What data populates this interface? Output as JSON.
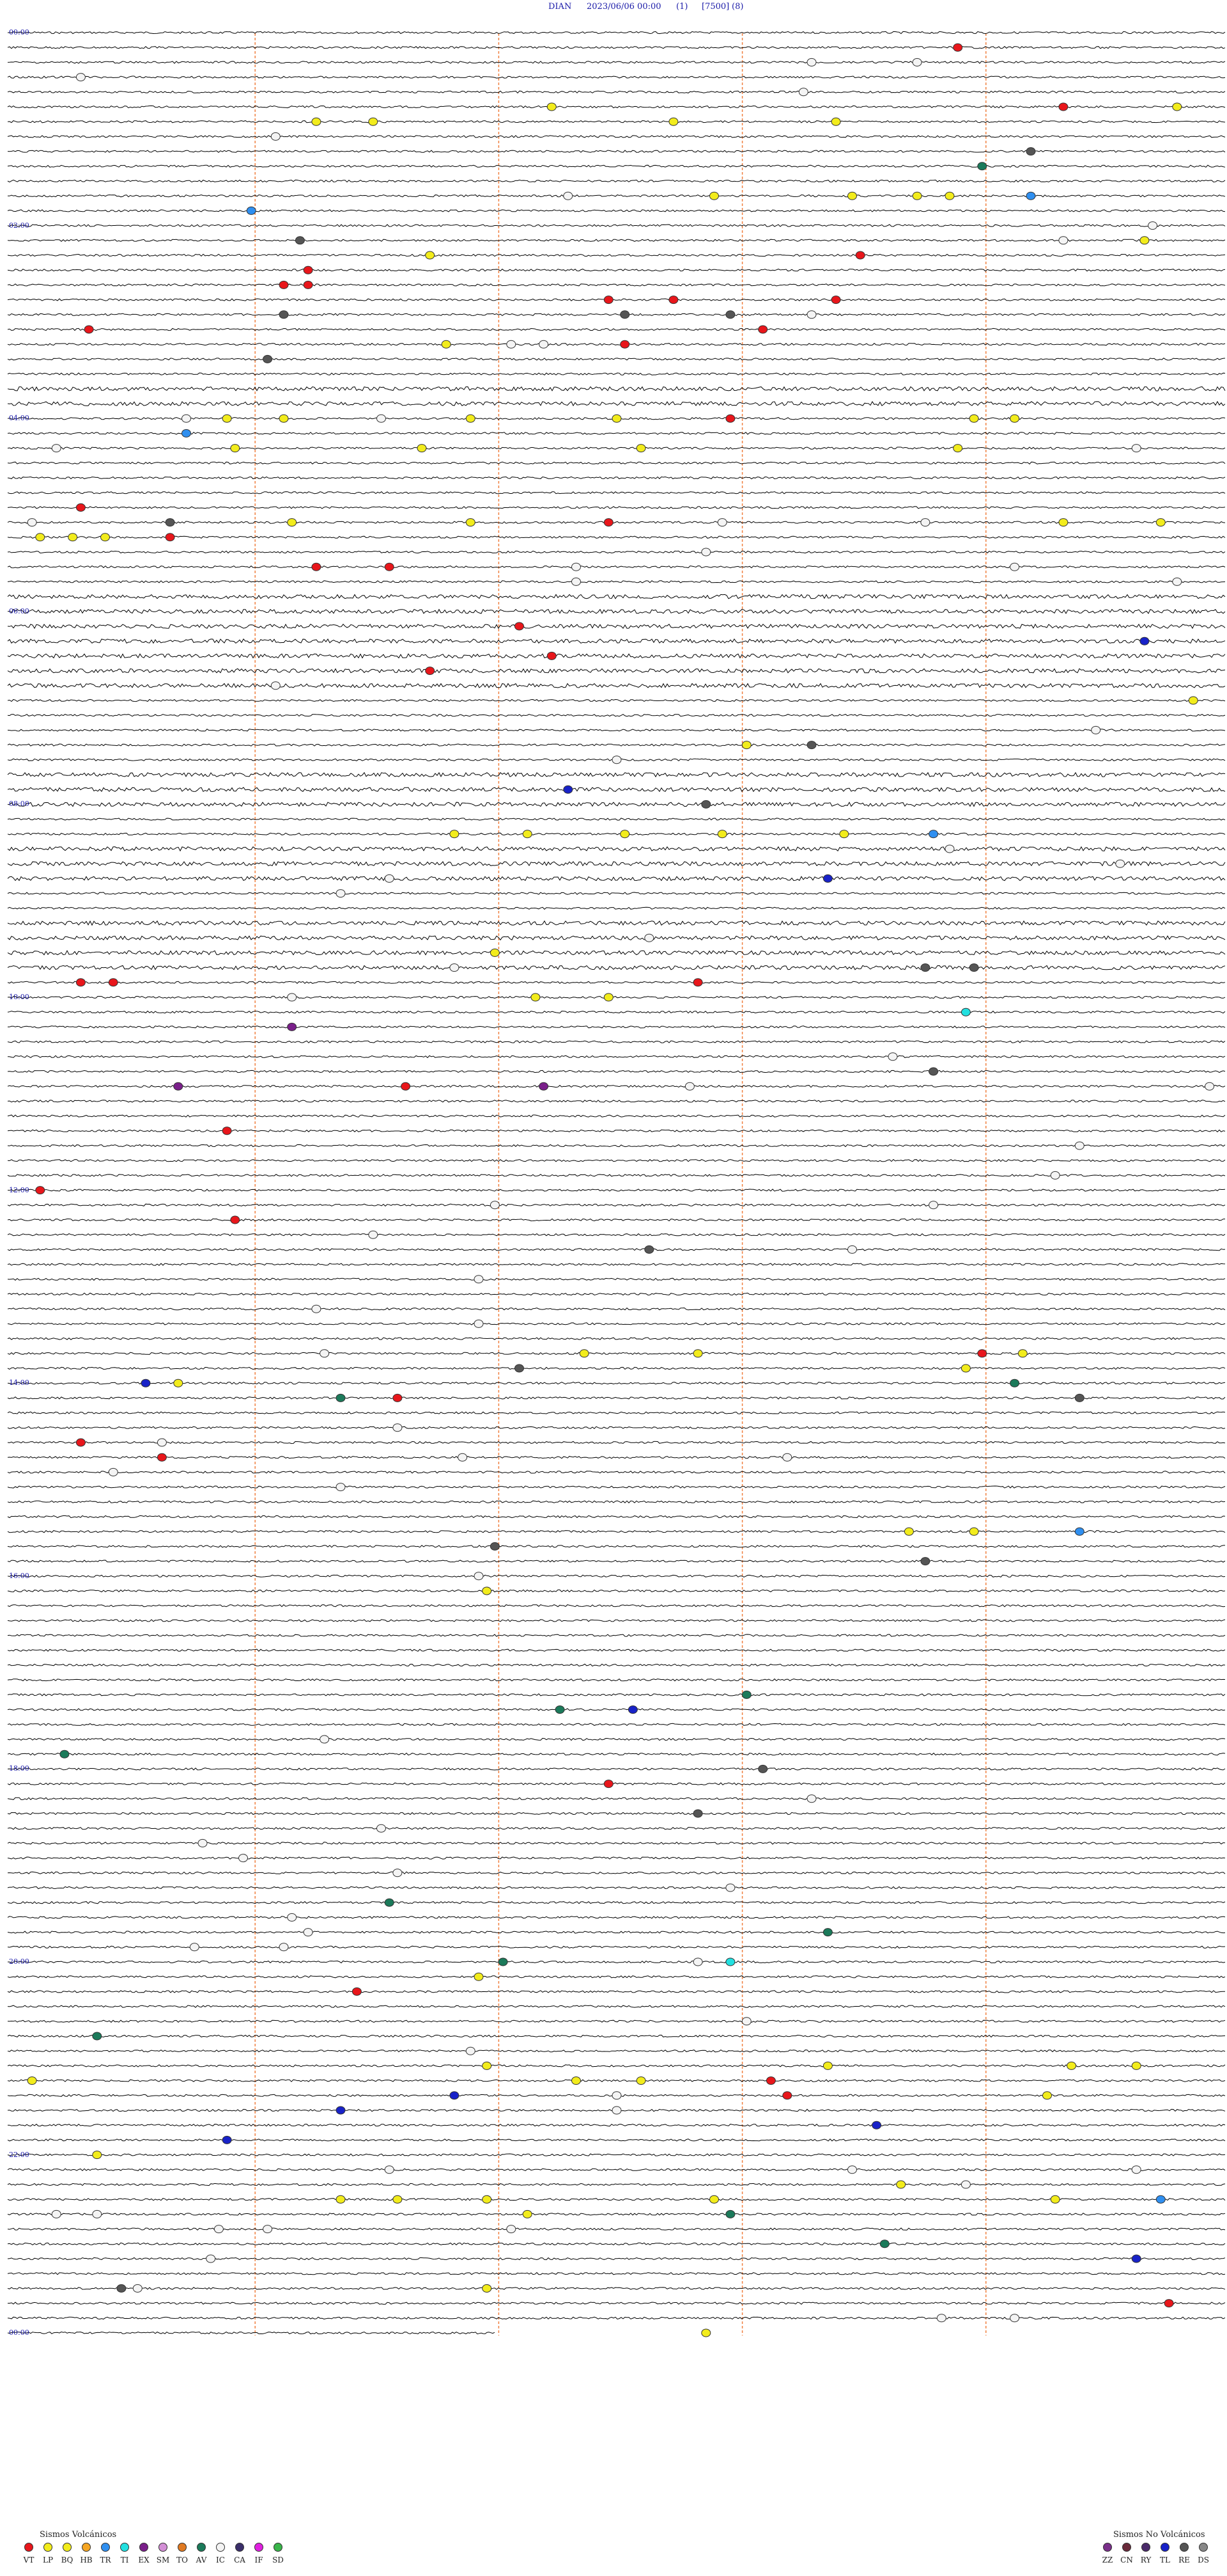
{
  "header": {
    "station": "DIAN",
    "datetime": "2023/06/06 00:00",
    "channel": "(1)",
    "scale": "[7500]",
    "component": "(8)"
  },
  "hour_labels": [
    "00:00",
    "02:00",
    "04:00",
    "06:00",
    "08:00",
    "10:00",
    "12:00",
    "14:00",
    "16:00",
    "18:00",
    "20:00",
    "22:00",
    "00:00"
  ],
  "legend": {
    "volcanic_title": "Sismos Volcánicos",
    "volcanic": [
      {
        "code": "VT",
        "color": "#e8161b"
      },
      {
        "code": "LP",
        "color": "#f2ec1c"
      },
      {
        "code": "BQ",
        "color": "#f2ec1c"
      },
      {
        "code": "HB",
        "color": "#f5a623"
      },
      {
        "code": "TR",
        "color": "#2f8ff0"
      },
      {
        "code": "TI",
        "color": "#22e0e0"
      },
      {
        "code": "EX",
        "color": "#7a1f8a"
      },
      {
        "code": "SM",
        "color": "#d38fd6"
      },
      {
        "code": "TO",
        "color": "#e07a22"
      },
      {
        "code": "AV",
        "color": "#1b7a5a"
      },
      {
        "code": "IC",
        "color": "#f4f4f4"
      },
      {
        "code": "CA",
        "color": "#3a2e6a"
      },
      {
        "code": "IF",
        "color": "#e020e0"
      },
      {
        "code": "SD",
        "color": "#39b54a"
      }
    ],
    "nonvolcanic_title": "Sismos No Volcánicos",
    "nonvolcanic": [
      {
        "code": "ZZ",
        "color": "#7a2f8a"
      },
      {
        "code": "CN",
        "color": "#6a2a3a"
      },
      {
        "code": "RY",
        "color": "#4a2a6a"
      },
      {
        "code": "TL",
        "color": "#1822c8"
      },
      {
        "code": "RE",
        "color": "#555555"
      },
      {
        "code": "DS",
        "color": "#888888"
      }
    ]
  },
  "colors": {
    "trace": "#000000",
    "minute_marker": "#f08040",
    "hour_label": "#1a1aa8"
  },
  "events": [
    {
      "line": 1,
      "minute": 58.5,
      "type": "VT"
    },
    {
      "line": 2,
      "minute": 56,
      "type": "IC"
    },
    {
      "line": 2,
      "minute": 49.5,
      "type": "IC"
    },
    {
      "line": 3,
      "minute": 4.5,
      "type": "IC"
    },
    {
      "line": 4,
      "minute": 49,
      "type": "IC"
    },
    {
      "line": 5,
      "minute": 33.5,
      "type": "LP"
    },
    {
      "line": 5,
      "minute": 65,
      "type": "VT"
    },
    {
      "line": 5,
      "minute": 72,
      "type": "LP"
    },
    {
      "line": 6,
      "minute": 19,
      "type": "LP"
    },
    {
      "line": 6,
      "minute": 22.5,
      "type": "LP"
    },
    {
      "line": 6,
      "minute": 41,
      "type": "LP"
    },
    {
      "line": 6,
      "minute": 51,
      "type": "LP"
    },
    {
      "line": 7,
      "minute": 16.5,
      "type": "IC"
    },
    {
      "line": 8,
      "minute": 63,
      "type": "RE"
    },
    {
      "line": 9,
      "minute": 60,
      "type": "AV"
    },
    {
      "line": 11,
      "minute": 34.5,
      "type": "IC"
    },
    {
      "line": 11,
      "minute": 43.5,
      "type": "LP"
    },
    {
      "line": 11,
      "minute": 52,
      "type": "LP"
    },
    {
      "line": 11,
      "minute": 56,
      "type": "LP"
    },
    {
      "line": 11,
      "minute": 58,
      "type": "LP"
    },
    {
      "line": 11,
      "minute": 63,
      "type": "TR"
    },
    {
      "line": 12,
      "minute": 15,
      "type": "TR"
    },
    {
      "line": 13,
      "minute": 70.5,
      "type": "IC"
    },
    {
      "line": 14,
      "minute": 18,
      "type": "RE"
    },
    {
      "line": 14,
      "minute": 65,
      "type": "IC"
    },
    {
      "line": 14,
      "minute": 70,
      "type": "LP"
    },
    {
      "line": 15,
      "minute": 26,
      "type": "LP"
    },
    {
      "line": 15,
      "minute": 52.5,
      "type": "VT"
    },
    {
      "line": 16,
      "minute": 18.5,
      "type": "VT"
    },
    {
      "line": 17,
      "minute": 18.5,
      "type": "VT"
    },
    {
      "line": 17,
      "minute": 17,
      "type": "VT"
    },
    {
      "line": 18,
      "minute": 37,
      "type": "VT"
    },
    {
      "line": 18,
      "minute": 41,
      "type": "VT"
    },
    {
      "line": 18,
      "minute": 51,
      "type": "VT"
    },
    {
      "line": 19,
      "minute": 17,
      "type": "RE"
    },
    {
      "line": 19,
      "minute": 38,
      "type": "RE"
    },
    {
      "line": 19,
      "minute": 44.5,
      "type": "RE"
    },
    {
      "line": 19,
      "minute": 49.5,
      "type": "IC"
    },
    {
      "line": 20,
      "minute": 5,
      "type": "VT"
    },
    {
      "line": 20,
      "minute": 46.5,
      "type": "VT"
    },
    {
      "line": 21,
      "minute": 27,
      "type": "LP"
    },
    {
      "line": 21,
      "minute": 31,
      "type": "IC"
    },
    {
      "line": 21,
      "minute": 33,
      "type": "IC"
    },
    {
      "line": 21,
      "minute": 38,
      "type": "VT"
    },
    {
      "line": 22,
      "minute": 16,
      "type": "RE"
    },
    {
      "line": 26,
      "minute": 11,
      "type": "IC"
    },
    {
      "line": 26,
      "minute": 13.5,
      "type": "LP"
    },
    {
      "line": 26,
      "minute": 17,
      "type": "LP"
    },
    {
      "line": 26,
      "minute": 23,
      "type": "IC"
    },
    {
      "line": 26,
      "minute": 28.5,
      "type": "LP"
    },
    {
      "line": 26,
      "minute": 37.5,
      "type": "LP"
    },
    {
      "line": 26,
      "minute": 44.5,
      "type": "VT"
    },
    {
      "line": 26,
      "minute": 59.5,
      "type": "LP"
    },
    {
      "line": 26,
      "minute": 62,
      "type": "LP"
    },
    {
      "line": 27,
      "minute": 11,
      "type": "TR"
    },
    {
      "line": 28,
      "minute": 3,
      "type": "IC"
    },
    {
      "line": 28,
      "minute": 14,
      "type": "LP"
    },
    {
      "line": 28,
      "minute": 25.5,
      "type": "LP"
    },
    {
      "line": 28,
      "minute": 39,
      "type": "LP"
    },
    {
      "line": 28,
      "minute": 58.5,
      "type": "LP"
    },
    {
      "line": 28,
      "minute": 69.5,
      "type": "IC"
    },
    {
      "line": 32,
      "minute": 4.5,
      "type": "VT"
    },
    {
      "line": 33,
      "minute": 1.5,
      "type": "IC"
    },
    {
      "line": 33,
      "minute": 10,
      "type": "RE"
    },
    {
      "line": 33,
      "minute": 17.5,
      "type": "LP"
    },
    {
      "line": 33,
      "minute": 28.5,
      "type": "LP"
    },
    {
      "line": 33,
      "minute": 37,
      "type": "VT"
    },
    {
      "line": 33,
      "minute": 44,
      "type": "IC"
    },
    {
      "line": 33,
      "minute": 56.5,
      "type": "IC"
    },
    {
      "line": 33,
      "minute": 65,
      "type": "LP"
    },
    {
      "line": 33,
      "minute": 71,
      "type": "LP"
    },
    {
      "line": 34,
      "minute": 2,
      "type": "LP"
    },
    {
      "line": 34,
      "minute": 4,
      "type": "LP"
    },
    {
      "line": 34,
      "minute": 6,
      "type": "LP"
    },
    {
      "line": 34,
      "minute": 10,
      "type": "VT"
    },
    {
      "line": 35,
      "minute": 43,
      "type": "IC"
    },
    {
      "line": 36,
      "minute": 19,
      "type": "VT"
    },
    {
      "line": 36,
      "minute": 23.5,
      "type": "VT"
    },
    {
      "line": 36,
      "minute": 35,
      "type": "IC"
    },
    {
      "line": 36,
      "minute": 62,
      "type": "IC"
    },
    {
      "line": 37,
      "minute": 35,
      "type": "IC"
    },
    {
      "line": 37,
      "minute": 72,
      "type": "IC"
    },
    {
      "line": 40,
      "minute": 31.5,
      "type": "VT"
    },
    {
      "line": 41,
      "minute": 70,
      "type": "TL"
    },
    {
      "line": 42,
      "minute": 33.5,
      "type": "VT"
    },
    {
      "line": 43,
      "minute": 26,
      "type": "VT"
    },
    {
      "line": 44,
      "minute": 16.5,
      "type": "IC"
    },
    {
      "line": 45,
      "minute": 73,
      "type": "LP"
    },
    {
      "line": 47,
      "minute": 67,
      "type": "IC"
    },
    {
      "line": 48,
      "minute": 45.5,
      "type": "LP"
    },
    {
      "line": 48,
      "minute": 49.5,
      "type": "RE"
    },
    {
      "line": 49,
      "minute": 37.5,
      "type": "IC"
    },
    {
      "line": 51,
      "minute": 34.5,
      "type": "TL"
    },
    {
      "line": 52,
      "minute": 43,
      "type": "RE"
    },
    {
      "line": 54,
      "minute": 27.5,
      "type": "LP"
    },
    {
      "line": 54,
      "minute": 32,
      "type": "LP"
    },
    {
      "line": 54,
      "minute": 38,
      "type": "LP"
    },
    {
      "line": 54,
      "minute": 44,
      "type": "LP"
    },
    {
      "line": 54,
      "minute": 51.5,
      "type": "LP"
    },
    {
      "line": 54,
      "minute": 57,
      "type": "TR"
    },
    {
      "line": 55,
      "minute": 58,
      "type": "IC"
    },
    {
      "line": 56,
      "minute": 68.5,
      "type": "IC"
    },
    {
      "line": 57,
      "minute": 23.5,
      "type": "IC"
    },
    {
      "line": 57,
      "minute": 50.5,
      "type": "TL"
    },
    {
      "line": 58,
      "minute": 20.5,
      "type": "IC"
    },
    {
      "line": 61,
      "minute": 39.5,
      "type": "IC"
    },
    {
      "line": 62,
      "minute": 30,
      "type": "LP"
    },
    {
      "line": 63,
      "minute": 27.5,
      "type": "IC"
    },
    {
      "line": 63,
      "minute": 56.5,
      "type": "RE"
    },
    {
      "line": 63,
      "minute": 59.5,
      "type": "RE"
    },
    {
      "line": 64,
      "minute": 6.5,
      "type": "VT"
    },
    {
      "line": 64,
      "minute": 42.5,
      "type": "VT"
    },
    {
      "line": 64,
      "minute": 4.5,
      "type": "VT"
    },
    {
      "line": 65,
      "minute": 32.5,
      "type": "LP"
    },
    {
      "line": 65,
      "minute": 37,
      "type": "LP"
    },
    {
      "line": 65,
      "minute": 17.5,
      "type": "IC"
    },
    {
      "line": 66,
      "minute": 59,
      "type": "TI"
    },
    {
      "line": 67,
      "minute": 17.5,
      "type": "EX"
    },
    {
      "line": 69,
      "minute": 54.5,
      "type": "IC"
    },
    {
      "line": 70,
      "minute": 57,
      "type": "RE"
    },
    {
      "line": 71,
      "minute": 10.5,
      "type": "EX"
    },
    {
      "line": 71,
      "minute": 24.5,
      "type": "VT"
    },
    {
      "line": 71,
      "minute": 33,
      "type": "EX"
    },
    {
      "line": 71,
      "minute": 42,
      "type": "IC"
    },
    {
      "line": 71,
      "minute": 74,
      "type": "IC"
    },
    {
      "line": 74,
      "minute": 13.5,
      "type": "VT"
    },
    {
      "line": 75,
      "minute": 66,
      "type": "IC"
    },
    {
      "line": 77,
      "minute": 64.5,
      "type": "IC"
    },
    {
      "line": 78,
      "minute": 2,
      "type": "VT"
    },
    {
      "line": 79,
      "minute": 30,
      "type": "IC"
    },
    {
      "line": 79,
      "minute": 57,
      "type": "IC"
    },
    {
      "line": 80,
      "minute": 14,
      "type": "VT"
    },
    {
      "line": 81,
      "minute": 22.5,
      "type": "IC"
    },
    {
      "line": 82,
      "minute": 39.5,
      "type": "RE"
    },
    {
      "line": 82,
      "minute": 52,
      "type": "IC"
    },
    {
      "line": 84,
      "minute": 29,
      "type": "IC"
    },
    {
      "line": 86,
      "minute": 19,
      "type": "IC"
    },
    {
      "line": 87,
      "minute": 29,
      "type": "IC"
    },
    {
      "line": 89,
      "minute": 60,
      "type": "VT"
    },
    {
      "line": 89,
      "minute": 19.5,
      "type": "IC"
    },
    {
      "line": 89,
      "minute": 35.5,
      "type": "LP"
    },
    {
      "line": 89,
      "minute": 42.5,
      "type": "LP"
    },
    {
      "line": 89,
      "minute": 62.5,
      "type": "LP"
    },
    {
      "line": 90,
      "minute": 31.5,
      "type": "RE"
    },
    {
      "line": 90,
      "minute": 59,
      "type": "LP"
    },
    {
      "line": 91,
      "minute": 10.5,
      "type": "LP"
    },
    {
      "line": 91,
      "minute": 8.5,
      "type": "TL"
    },
    {
      "line": 91,
      "minute": 62,
      "type": "AV"
    },
    {
      "line": 92,
      "minute": 20.5,
      "type": "AV"
    },
    {
      "line": 92,
      "minute": 24,
      "type": "VT"
    },
    {
      "line": 92,
      "minute": 66,
      "type": "RE"
    },
    {
      "line": 94,
      "minute": 24,
      "type": "IC"
    },
    {
      "line": 95,
      "minute": 4.5,
      "type": "VT"
    },
    {
      "line": 95,
      "minute": 9.5,
      "type": "IC"
    },
    {
      "line": 96,
      "minute": 9.5,
      "type": "VT"
    },
    {
      "line": 96,
      "minute": 28,
      "type": "IC"
    },
    {
      "line": 96,
      "minute": 48,
      "type": "IC"
    },
    {
      "line": 97,
      "minute": 6.5,
      "type": "IC"
    },
    {
      "line": 98,
      "minute": 20.5,
      "type": "IC"
    },
    {
      "line": 101,
      "minute": 55.5,
      "type": "LP"
    },
    {
      "line": 101,
      "minute": 59.5,
      "type": "LP"
    },
    {
      "line": 101,
      "minute": 66,
      "type": "TR"
    },
    {
      "line": 102,
      "minute": 30,
      "type": "RE"
    },
    {
      "line": 103,
      "minute": 56.5,
      "type": "RE"
    },
    {
      "line": 104,
      "minute": 29,
      "type": "IC"
    },
    {
      "line": 105,
      "minute": 29.5,
      "type": "LP"
    },
    {
      "line": 112,
      "minute": 45.5,
      "type": "AV"
    },
    {
      "line": 113,
      "minute": 34,
      "type": "AV"
    },
    {
      "line": 113,
      "minute": 38.5,
      "type": "TL"
    },
    {
      "line": 115,
      "minute": 19.5,
      "type": "IC"
    },
    {
      "line": 116,
      "minute": 3.5,
      "type": "AV"
    },
    {
      "line": 117,
      "minute": 46.5,
      "type": "RE"
    },
    {
      "line": 118,
      "minute": 37,
      "type": "VT"
    },
    {
      "line": 119,
      "minute": 49.5,
      "type": "IC"
    },
    {
      "line": 120,
      "minute": 42.5,
      "type": "RE"
    },
    {
      "line": 121,
      "minute": 23,
      "type": "IC"
    },
    {
      "line": 122,
      "minute": 12,
      "type": "IC"
    },
    {
      "line": 123,
      "minute": 14.5,
      "type": "IC"
    },
    {
      "line": 124,
      "minute": 24,
      "type": "IC"
    },
    {
      "line": 125,
      "minute": 44.5,
      "type": "IC"
    },
    {
      "line": 126,
      "minute": 23.5,
      "type": "AV"
    },
    {
      "line": 127,
      "minute": 17.5,
      "type": "IC"
    },
    {
      "line": 128,
      "minute": 18.5,
      "type": "IC"
    },
    {
      "line": 128,
      "minute": 50.5,
      "type": "AV"
    },
    {
      "line": 129,
      "minute": 11.5,
      "type": "IC"
    },
    {
      "line": 129,
      "minute": 17,
      "type": "IC"
    },
    {
      "line": 130,
      "minute": 30.5,
      "type": "AV"
    },
    {
      "line": 130,
      "minute": 42.5,
      "type": "IC"
    },
    {
      "line": 130,
      "minute": 44.5,
      "type": "TI"
    },
    {
      "line": 131,
      "minute": 29,
      "type": "LP"
    },
    {
      "line": 132,
      "minute": 21.5,
      "type": "VT"
    },
    {
      "line": 134,
      "minute": 45.5,
      "type": "IC"
    },
    {
      "line": 135,
      "minute": 5.5,
      "type": "AV"
    },
    {
      "line": 136,
      "minute": 28.5,
      "type": "IC"
    },
    {
      "line": 137,
      "minute": 50.5,
      "type": "LP"
    },
    {
      "line": 137,
      "minute": 65.5,
      "type": "LP"
    },
    {
      "line": 137,
      "minute": 69.5,
      "type": "LP"
    },
    {
      "line": 137,
      "minute": 29.5,
      "type": "LP"
    },
    {
      "line": 138,
      "minute": 1.5,
      "type": "LP"
    },
    {
      "line": 138,
      "minute": 35,
      "type": "LP"
    },
    {
      "line": 138,
      "minute": 39,
      "type": "LP"
    },
    {
      "line": 138,
      "minute": 47,
      "type": "VT"
    },
    {
      "line": 139,
      "minute": 27.5,
      "type": "TL"
    },
    {
      "line": 139,
      "minute": 37.5,
      "type": "IC"
    },
    {
      "line": 139,
      "minute": 48,
      "type": "VT"
    },
    {
      "line": 139,
      "minute": 64,
      "type": "LP"
    },
    {
      "line": 140,
      "minute": 20.5,
      "type": "TL"
    },
    {
      "line": 140,
      "minute": 37.5,
      "type": "IC"
    },
    {
      "line": 141,
      "minute": 53.5,
      "type": "TL"
    },
    {
      "line": 142,
      "minute": 13.5,
      "type": "TL"
    },
    {
      "line": 143,
      "minute": 5.5,
      "type": "LP"
    },
    {
      "line": 144,
      "minute": 23.5,
      "type": "IC"
    },
    {
      "line": 144,
      "minute": 52,
      "type": "IC"
    },
    {
      "line": 144,
      "minute": 69.5,
      "type": "IC"
    },
    {
      "line": 145,
      "minute": 55,
      "type": "LP"
    },
    {
      "line": 145,
      "minute": 59,
      "type": "IC"
    },
    {
      "line": 146,
      "minute": 43.5,
      "type": "LP"
    },
    {
      "line": 146,
      "minute": 64.5,
      "type": "LP"
    },
    {
      "line": 146,
      "minute": 20.5,
      "type": "LP"
    },
    {
      "line": 146,
      "minute": 24,
      "type": "LP"
    },
    {
      "line": 146,
      "minute": 29.5,
      "type": "LP"
    },
    {
      "line": 146,
      "minute": 71,
      "type": "TR"
    },
    {
      "line": 147,
      "minute": 3,
      "type": "IC"
    },
    {
      "line": 147,
      "minute": 5.5,
      "type": "IC"
    },
    {
      "line": 147,
      "minute": 32,
      "type": "LP"
    },
    {
      "line": 147,
      "minute": 44.5,
      "type": "AV"
    },
    {
      "line": 148,
      "minute": 13,
      "type": "IC"
    },
    {
      "line": 148,
      "minute": 16,
      "type": "IC"
    },
    {
      "line": 148,
      "minute": 31,
      "type": "IC"
    },
    {
      "line": 149,
      "minute": 54,
      "type": "AV"
    },
    {
      "line": 150,
      "minute": 12.5,
      "type": "IC"
    },
    {
      "line": 150,
      "minute": 69.5,
      "type": "TL"
    },
    {
      "line": 152,
      "minute": 7,
      "type": "RE"
    },
    {
      "line": 152,
      "minute": 8,
      "type": "IC"
    },
    {
      "line": 152,
      "minute": 29.5,
      "type": "LP"
    },
    {
      "line": 153,
      "minute": 71.5,
      "type": "VT"
    },
    {
      "line": 154,
      "minute": 57.5,
      "type": "IC"
    },
    {
      "line": 154,
      "minute": 62,
      "type": "IC"
    },
    {
      "line": 155,
      "minute": 43,
      "type": "LP"
    }
  ]
}
